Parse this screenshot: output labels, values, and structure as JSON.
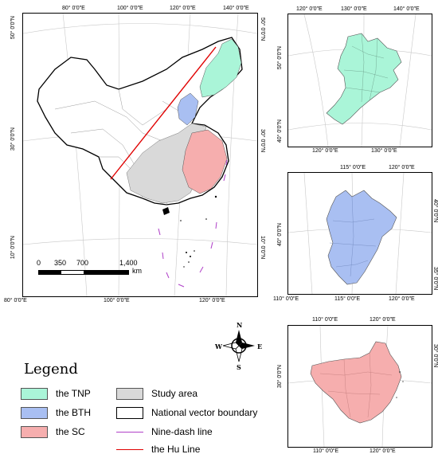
{
  "main_map": {
    "top_ticks": [
      "80° 0′0″E",
      "100° 0′0″E",
      "120° 0′0″E",
      "140° 0′0″E"
    ],
    "bottom_ticks": [
      "80° 0′0″E",
      "100° 0′0″E",
      "120° 0′0″E"
    ],
    "left_ticks": [
      "50° 0′0″N",
      "30° 0′0″N",
      "10° 0′0″N"
    ],
    "right_ticks": [
      "50° 0′0″N",
      "30° 0′0″N",
      "10° 0′0″N"
    ],
    "scale_bar": {
      "labels": [
        "0",
        "350",
        "700",
        "1,400"
      ],
      "unit": "km"
    }
  },
  "inset_tnp": {
    "top_ticks": [
      "120° 0′0″E",
      "130° 0′0″E",
      "140° 0′0″E"
    ],
    "bottom_ticks": [
      "120° 0′0″E",
      "130° 0′0″E"
    ],
    "left_ticks": [
      "50° 0′0″N",
      "40° 0′0″N"
    ]
  },
  "inset_bth": {
    "top_ticks": [
      "115° 0′0″E",
      "120° 0′0″E"
    ],
    "bottom_ticks": [
      "110° 0′0″E",
      "115° 0′0″E",
      "120° 0′0″E"
    ],
    "left_ticks": [
      "40° 0′0″N"
    ],
    "right_ticks": [
      "40° 0′0″N",
      "35° 0′0″N"
    ]
  },
  "inset_sc": {
    "top_ticks": [
      "110° 0′0″E",
      "120° 0′0″E"
    ],
    "bottom_ticks": [
      "110° 0′0″E",
      "120° 0′0″E"
    ],
    "left_ticks": [
      "30° 0′0″N"
    ],
    "right_ticks": [
      "30° 0′0″N"
    ]
  },
  "compass": {
    "n": "N",
    "s": "S",
    "e": "E",
    "w": "W"
  },
  "legend": {
    "title": "Legend",
    "items": [
      {
        "label": "the TNP",
        "kind": "fill",
        "color": "#aaf5d8"
      },
      {
        "label": "Study area",
        "kind": "fill",
        "color": "#d9d9d9"
      },
      {
        "label": "the BTH",
        "kind": "fill",
        "color": "#a9bff2"
      },
      {
        "label": "National vector boundary",
        "kind": "fill",
        "color": "#ffffff"
      },
      {
        "label": "the SC",
        "kind": "fill",
        "color": "#f6aeae"
      },
      {
        "label": "Nine-dash line",
        "kind": "line",
        "color": "#b040c8"
      },
      {
        "label": "the Hu Line",
        "kind": "line",
        "color": "#e00000"
      }
    ]
  }
}
